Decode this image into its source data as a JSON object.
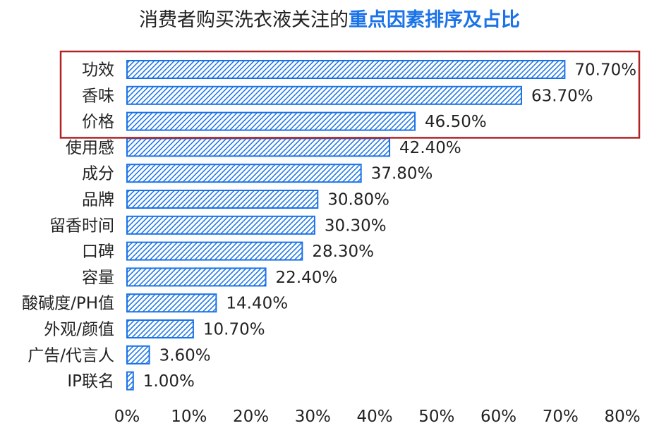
{
  "title": {
    "prefix": "消费者购买洗衣液关注的",
    "highlight": "重点因素排序及占比"
  },
  "colors": {
    "bar": "#1a73e8",
    "highlight_box": "#b22222",
    "title_highlight": "#1a73e8"
  },
  "chart_data": {
    "type": "bar",
    "orientation": "horizontal",
    "categories": [
      "功效",
      "香味",
      "价格",
      "使用感",
      "成分",
      "品牌",
      "留香时间",
      "口碑",
      "容量",
      "酸碱度/PH值",
      "外观/颜值",
      "广告/代言人",
      "IP联名"
    ],
    "values": [
      70.7,
      63.7,
      46.5,
      42.4,
      37.8,
      30.8,
      30.3,
      28.3,
      22.4,
      14.4,
      10.7,
      3.6,
      1.0
    ],
    "value_labels": [
      "70.70%",
      "63.70%",
      "46.50%",
      "42.40%",
      "37.80%",
      "30.80%",
      "30.30%",
      "28.30%",
      "22.40%",
      "14.40%",
      "10.70%",
      "3.60%",
      "1.00%"
    ],
    "xlim": [
      0,
      80
    ],
    "xticks": [
      "0%",
      "10%",
      "20%",
      "30%",
      "40%",
      "50%",
      "60%",
      "70%",
      "80%"
    ],
    "pattern": "diagonal-hatch",
    "highlighted_categories": [
      "功效",
      "香味",
      "价格"
    ],
    "grid": false
  }
}
